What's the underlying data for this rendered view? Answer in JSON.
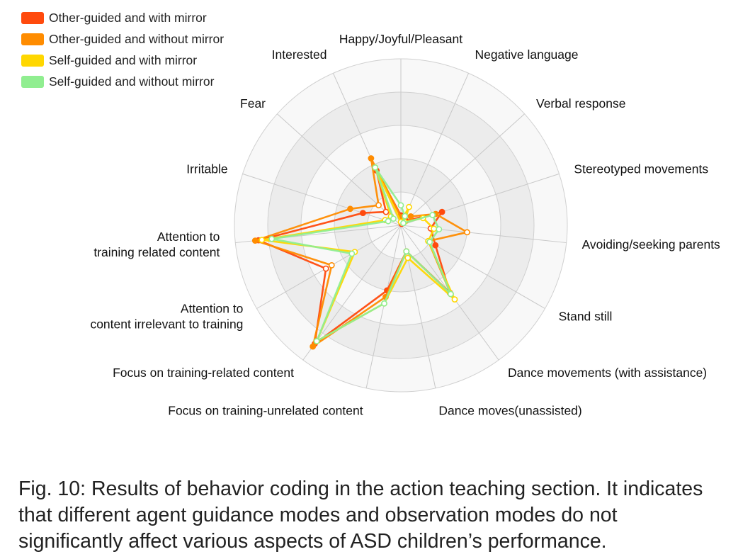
{
  "chart_data": {
    "type": "radar",
    "max": 5,
    "axes": [
      "Happy/Joyful/Pleasant",
      "Negative language",
      "Verbal response",
      "Stereotyped movements",
      "Avoiding/seeking parents",
      "Stand still",
      "Dance movements (with assistance)",
      "Dance moves(unassisted)",
      "Focus on training-unrelated content",
      "Focus on training-related content",
      "Attention to content irrelevant to training",
      "Attention to training related content",
      "Irritable",
      "Fear",
      "Interested"
    ],
    "axis_label_lines": [
      [
        "Happy/Joyful/Pleasant"
      ],
      [
        "Negative language"
      ],
      [
        "Verbal response"
      ],
      [
        "Stereotyped movements"
      ],
      [
        "Avoiding/seeking parents"
      ],
      [
        "Stand still"
      ],
      [
        "Dance movements (with assistance)"
      ],
      [
        "Dance moves(unassisted)"
      ],
      [
        "Focus on training-unrelated content"
      ],
      [
        "Focus on training-related content"
      ],
      [
        "Attention to",
        "content irrelevant to training"
      ],
      [
        "Attention to",
        "training related content"
      ],
      [
        "Irritable"
      ],
      [
        "Fear"
      ],
      [
        "Interested"
      ]
    ],
    "series": [
      {
        "name": "Other-guided and with mirror",
        "color": "#ff4a0d",
        "values": [
          0.3,
          0.05,
          0.2,
          1.3,
          0.9,
          1.2,
          2.5,
          0.8,
          2.0,
          4.4,
          2.6,
          4.3,
          1.2,
          0.6,
          1.8
        ]
      },
      {
        "name": "Other-guided and without mirror",
        "color": "#ff8c00",
        "values": [
          0.25,
          0.3,
          0.4,
          1.1,
          2.0,
          0.95,
          2.55,
          0.8,
          2.2,
          4.5,
          2.4,
          4.4,
          1.6,
          0.9,
          2.2
        ]
      },
      {
        "name": "Self-guided and with mirror",
        "color": "#ffd700",
        "values": [
          0.1,
          0.6,
          0.15,
          0.7,
          1.0,
          0.95,
          2.75,
          1.0,
          2.4,
          4.3,
          1.6,
          4.2,
          0.5,
          0.4,
          1.9
        ]
      },
      {
        "name": "Self-guided and without mirror",
        "color": "#90ee90",
        "values": [
          0.6,
          0.3,
          0.1,
          1.0,
          1.15,
          1.0,
          2.55,
          0.8,
          2.4,
          4.3,
          1.7,
          3.9,
          0.4,
          0.3,
          1.9
        ]
      }
    ],
    "legend_position": "top-left",
    "grid": true
  },
  "caption": "Fig. 10: Results of behavior coding in the action teaching section.  It indicates that different agent guidance modes and observation modes do not significantly affect various aspects of ASD children’s performance."
}
